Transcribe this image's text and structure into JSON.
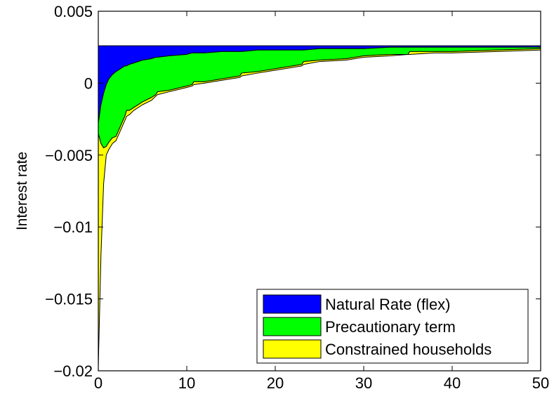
{
  "chart_data": {
    "type": "area",
    "title": "",
    "xlabel": "",
    "ylabel": "Interest rate",
    "xlim": [
      0,
      50
    ],
    "ylim": [
      -0.02,
      0.005
    ],
    "xticks": [
      0,
      10,
      20,
      30,
      40,
      50
    ],
    "xtick_labels": [
      "0",
      "10",
      "20",
      "30",
      "40",
      "50"
    ],
    "yticks": [
      0.005,
      0,
      -0.005,
      -0.01,
      -0.015,
      -0.02
    ],
    "ytick_labels": [
      "0.005",
      "0",
      "−0.005",
      "−0.01",
      "−0.015",
      "−0.02"
    ],
    "grid": false,
    "legend_position": "bottom-right",
    "x": [
      0,
      0.3,
      0.6,
      0.9,
      1.2,
      1.6,
      2,
      2.5,
      3,
      3.2,
      3.5,
      4,
      5,
      6,
      6.5,
      6.7,
      8,
      10,
      10.6,
      10.8,
      12,
      14,
      16,
      16.2,
      18,
      20,
      23,
      23.2,
      25,
      28,
      30,
      33,
      35,
      35.2,
      38,
      40,
      45,
      50
    ],
    "series": [
      {
        "name": "Natural Rate (flex)",
        "color": "#0000ff",
        "values": [
          0.0026,
          0.0026,
          0.0026,
          0.0026,
          0.0026,
          0.0026,
          0.0026,
          0.0026,
          0.0026,
          0.0026,
          0.0026,
          0.0026,
          0.0026,
          0.0026,
          0.0026,
          0.0026,
          0.0026,
          0.0026,
          0.0026,
          0.0026,
          0.0026,
          0.0026,
          0.0026,
          0.0026,
          0.0026,
          0.0026,
          0.0026,
          0.0026,
          0.0026,
          0.0026,
          0.0026,
          0.0026,
          0.0026,
          0.0026,
          0.0026,
          0.0026,
          0.0026,
          0.0026
        ]
      },
      {
        "name": "Precautionary term",
        "color": "#00ff00",
        "values": [
          -0.0028,
          -0.0015,
          -0.0007,
          -0.0001,
          0.0003,
          0.0006,
          0.0008,
          0.001,
          0.0012,
          0.0012,
          0.0013,
          0.0014,
          0.0016,
          0.0017,
          0.0018,
          0.0018,
          0.0019,
          0.002,
          0.0021,
          0.0021,
          0.0021,
          0.0022,
          0.0022,
          0.0022,
          0.0023,
          0.0023,
          0.0023,
          0.0023,
          0.0024,
          0.0024,
          0.0024,
          0.0025,
          0.0025,
          0.0025,
          0.0025,
          0.0025,
          0.0025,
          0.0025
        ]
      },
      {
        "name": "Constrained households",
        "color": "#ffff00",
        "values": [
          -0.0035,
          -0.0042,
          -0.0045,
          -0.0044,
          -0.0041,
          -0.0038,
          -0.0037,
          -0.003,
          -0.0023,
          -0.0019,
          -0.0019,
          -0.0017,
          -0.0013,
          -0.001,
          -0.0008,
          -0.0006,
          -0.0005,
          -0.0002,
          -0.0001,
          0.0001,
          0.0001,
          0.0003,
          0.0005,
          0.0007,
          0.0008,
          0.001,
          0.0013,
          0.0015,
          0.0016,
          0.0017,
          0.0019,
          0.002,
          0.002,
          0.0022,
          0.0022,
          0.0022,
          0.0023,
          0.0024
        ]
      }
    ],
    "constrained_lower": [
      -0.0197,
      -0.012,
      -0.007,
      -0.005,
      -0.0046,
      -0.0042,
      -0.004,
      -0.0033,
      -0.0026,
      -0.0023,
      -0.0022,
      -0.0019,
      -0.0015,
      -0.0012,
      -0.0009,
      -0.0008,
      -0.0006,
      -0.0003,
      -0.0002,
      -0.0001,
      0.0,
      0.0002,
      0.0004,
      0.0005,
      0.0007,
      0.0009,
      0.0012,
      0.0013,
      0.0015,
      0.0016,
      0.0018,
      0.0019,
      0.002,
      0.002,
      0.0021,
      0.0021,
      0.0022,
      0.0023
    ]
  }
}
